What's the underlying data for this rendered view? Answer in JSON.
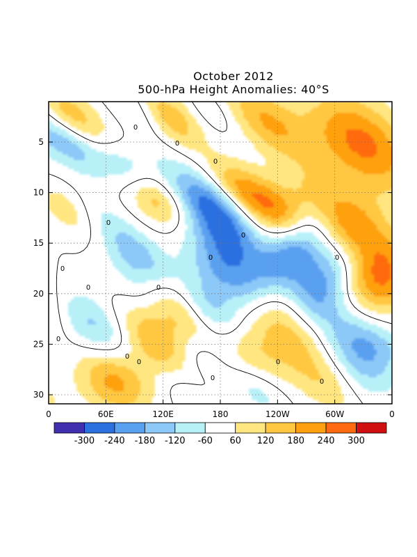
{
  "chart_data": {
    "type": "heatmap",
    "title": "October 2012",
    "subtitle": "500-hPa Height Anomalies: 40°S",
    "xlabel": "",
    "ylabel": "",
    "x_ticks": [
      "0",
      "60E",
      "120E",
      "180",
      "120W",
      "60W",
      "0"
    ],
    "x_range": [
      0,
      360
    ],
    "y_ticks": [
      "5",
      "10",
      "15",
      "20",
      "25",
      "30"
    ],
    "y_range": [
      1,
      31
    ],
    "y_reversed": true,
    "grid": true,
    "contour_label": "0",
    "colorbar": {
      "tick_labels": [
        "-300",
        "-240",
        "-180",
        "-120",
        "-60",
        "60",
        "120",
        "180",
        "240",
        "300"
      ],
      "colors": [
        "#4030b0",
        "#2c70e0",
        "#5aa0f0",
        "#8cc8f8",
        "#b8f0f8",
        "#ffffff",
        "#ffe680",
        "#ffc840",
        "#ffa010",
        "#ff6a10",
        "#d01010"
      ],
      "placement": "bottom"
    }
  }
}
